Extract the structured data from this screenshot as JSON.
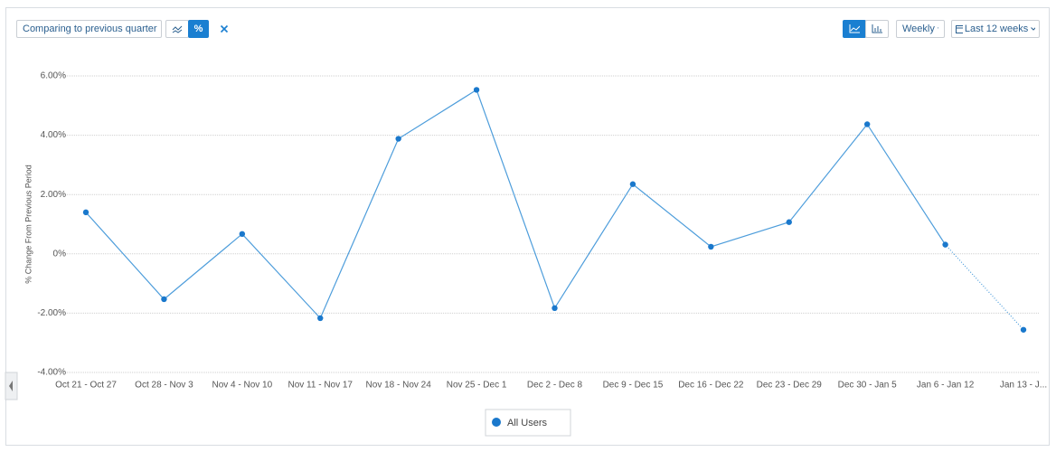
{
  "toolbar": {
    "compare": "Comparing to previous quarter",
    "percent": "%",
    "interval": "Weekly",
    "range": "Last 12 weeks"
  },
  "chart_data": {
    "type": "line",
    "y_label": "% Change From Previous Period",
    "categories": [
      "Oct 21 - Oct 27",
      "Oct 28 - Nov 3",
      "Nov 4 - Nov 10",
      "Nov 11 - Nov 17",
      "Nov 18 - Nov 24",
      "Nov 25 - Dec 1",
      "Dec 2 - Dec 8",
      "Dec 9 - Dec 15",
      "Dec 16 - Dec 22",
      "Dec 23 - Dec 29",
      "Dec 30 - Jan 5",
      "Jan 6 - Jan 12",
      "Jan 13 - J..."
    ],
    "series": [
      {
        "name": "All Users",
        "color": "#1a78cc",
        "line_color": "#4d9ddb",
        "values": [
          1.4,
          -1.53,
          0.67,
          -2.17,
          3.88,
          5.53,
          -1.83,
          2.35,
          0.24,
          1.07,
          4.37,
          0.31,
          -2.56
        ]
      }
    ],
    "ylim": [
      -4,
      6
    ],
    "yticks": [
      {
        "value": -4,
        "label": "-4.00%"
      },
      {
        "value": -2,
        "label": "-2.00%"
      },
      {
        "value": 0,
        "label": "0%"
      },
      {
        "value": 2,
        "label": "2.00%"
      },
      {
        "value": 4,
        "label": "4.00%"
      },
      {
        "value": 6,
        "label": "6.00%"
      }
    ],
    "grid": true,
    "last_segment_dotted": true,
    "legend": "bottom"
  }
}
